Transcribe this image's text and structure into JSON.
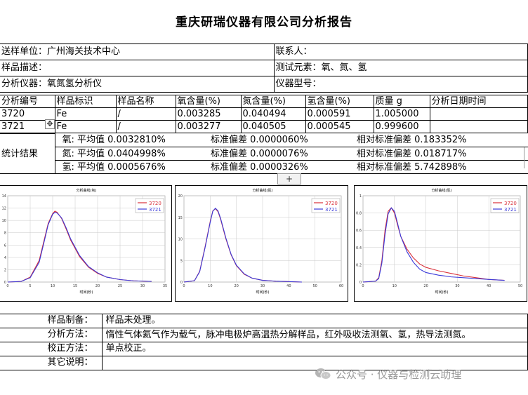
{
  "report": {
    "title": "重庆研瑞仪器有限公司分析报告"
  },
  "info": {
    "sender_label": "送样单位：",
    "sender_value": "广州海关技术中心",
    "contact_label": "联系人：",
    "sample_desc_label": "样品描述：",
    "elements_label": "测试元素：",
    "elements_value": "氧、氮、氢",
    "instrument_label": "分析仪器：",
    "instrument_value": "氧氮氢分析仪",
    "model_label": "仪器型号："
  },
  "measure": {
    "headers": [
      "分析编号",
      "样品标识",
      "样品名称",
      "氧含量(%)",
      "氮含量(%)",
      "氢含量(%)",
      "质量 g",
      "分析日期时间"
    ],
    "rows": [
      [
        "3720",
        "Fe",
        "/",
        "0.003285",
        "0.040494",
        "0.000591",
        "1.005000",
        ""
      ],
      [
        "3721",
        "Fe",
        "/",
        "0.003277",
        "0.040505",
        "0.000545",
        "0.999600",
        ""
      ]
    ]
  },
  "stats": {
    "label": "统计结果",
    "rows": [
      {
        "mean": "氧: 平均值 0.0032810%",
        "sd": "标准偏差 0.0000060%",
        "rsd": "相对标准偏差 0.183352%"
      },
      {
        "mean": "氮: 平均值 0.0404998%",
        "sd": "标准偏差 0.0000076%",
        "rsd": "相对标准偏差 0.018717%"
      },
      {
        "mean": "氢: 平均值 0.0005676%",
        "sd": "标准偏差 0.0000326%",
        "rsd": "相对标准偏差 5.742898%"
      }
    ]
  },
  "handles": {
    "move_glyph": "✥",
    "plus_glyph": "+"
  },
  "colors": {
    "series_3720": "#d9303a",
    "series_3721": "#3a3ad9",
    "plot_bg": "#ffffff",
    "grid": "#c8c8c8"
  },
  "chart_data": [
    {
      "type": "line",
      "title": "分析曲线(氧)",
      "xlabel": "时间(秒)",
      "ylabel": "",
      "xlim": [
        0,
        35
      ],
      "ylim": [
        0,
        14
      ],
      "xticks": [
        0,
        5,
        10,
        15,
        20,
        25,
        30,
        35
      ],
      "yticks": [
        0,
        2,
        4,
        6,
        8,
        10,
        12,
        14
      ],
      "grid": true,
      "legend": "top-right",
      "series": [
        {
          "name": "3720",
          "color": "#d9303a",
          "x": [
            0,
            3,
            5,
            7,
            8,
            9,
            10,
            10.5,
            11,
            12,
            13,
            14,
            16,
            18,
            20,
            22,
            25,
            28,
            32
          ],
          "y": [
            0,
            0.1,
            0.8,
            3.5,
            6.5,
            9.5,
            11.1,
            11.5,
            11.3,
            10.3,
            8.6,
            6.8,
            4.1,
            2.4,
            1.4,
            0.8,
            0.4,
            0.2,
            0.1
          ]
        },
        {
          "name": "3721",
          "color": "#3a3ad9",
          "x": [
            0,
            3,
            5,
            7,
            8,
            9,
            10,
            10.5,
            11,
            12,
            13,
            14,
            16,
            18,
            20,
            22,
            25,
            28,
            32
          ],
          "y": [
            0,
            0.1,
            0.7,
            3.2,
            6.2,
            9.3,
            11.0,
            11.3,
            11.2,
            10.4,
            8.8,
            7.0,
            4.3,
            2.5,
            1.5,
            0.8,
            0.4,
            0.2,
            0.1
          ]
        }
      ]
    },
    {
      "type": "line",
      "title": "分析曲线(氮)",
      "xlabel": "时间(秒)",
      "ylabel": "",
      "xlim": [
        0,
        60
      ],
      "ylim": [
        0,
        20
      ],
      "xticks": [
        0,
        10,
        20,
        30,
        40,
        50,
        60
      ],
      "yticks": [
        0,
        5,
        10,
        15,
        20
      ],
      "grid": true,
      "legend": "top-right",
      "series": [
        {
          "name": "3720",
          "color": "#d9303a",
          "x": [
            0,
            4,
            6,
            8,
            10,
            11,
            12,
            13,
            14,
            16,
            18,
            20,
            23,
            26,
            30,
            35,
            40,
            45
          ],
          "y": [
            0,
            0.3,
            2.5,
            8.0,
            14.0,
            16.5,
            17.0,
            16.3,
            14.5,
            10.0,
            6.3,
            3.8,
            1.8,
            0.9,
            0.4,
            0.2,
            0.1,
            0
          ]
        },
        {
          "name": "3721",
          "color": "#3a3ad9",
          "x": [
            0,
            4,
            6,
            8,
            10,
            11,
            12,
            13,
            14,
            16,
            18,
            20,
            23,
            26,
            30,
            35,
            40,
            45
          ],
          "y": [
            0,
            0.3,
            2.4,
            7.8,
            13.8,
            16.4,
            17.1,
            16.5,
            14.7,
            10.2,
            6.4,
            3.9,
            1.9,
            0.9,
            0.4,
            0.2,
            0.1,
            0
          ]
        }
      ]
    },
    {
      "type": "line",
      "title": "分析曲线(氢)",
      "xlabel": "时间(秒)",
      "ylabel": "",
      "xlim": [
        0,
        50
      ],
      "ylim": [
        0,
        1.0
      ],
      "xticks": [
        0,
        10,
        20,
        30,
        40,
        50
      ],
      "yticks": [
        0,
        0.2,
        0.4,
        0.6,
        0.8,
        1.0
      ],
      "grid": true,
      "legend": "top-right",
      "series": [
        {
          "name": "3720",
          "color": "#d9303a",
          "x": [
            0,
            4,
            5,
            6,
            7,
            8,
            9,
            10,
            11,
            12,
            14,
            16,
            18,
            20,
            24,
            28,
            32,
            36,
            40,
            45
          ],
          "y": [
            0,
            0.01,
            0.05,
            0.25,
            0.6,
            0.82,
            0.86,
            0.8,
            0.66,
            0.53,
            0.38,
            0.28,
            0.21,
            0.17,
            0.13,
            0.1,
            0.07,
            0.05,
            0.03,
            0.02
          ]
        },
        {
          "name": "3721",
          "color": "#3a3ad9",
          "x": [
            0,
            4,
            5,
            6,
            7,
            8,
            9,
            10,
            11,
            12,
            14,
            16,
            18,
            20,
            24,
            28,
            32,
            36,
            40,
            45
          ],
          "y": [
            0,
            0.01,
            0.04,
            0.22,
            0.55,
            0.79,
            0.86,
            0.82,
            0.68,
            0.53,
            0.35,
            0.23,
            0.15,
            0.11,
            0.08,
            0.06,
            0.05,
            0.04,
            0.03,
            0.02
          ]
        }
      ]
    }
  ],
  "bottom": {
    "rows": [
      {
        "label": "样品制备：",
        "value": "样品未处理。"
      },
      {
        "label": "分析方法：",
        "value": "惰性气体氦气作为载气，脉冲电极炉高温热分解样品，红外吸收法测氧、氢，热导法测氮。"
      },
      {
        "label": "校正方法：",
        "value": "单点校正。"
      },
      {
        "label": "其它说明：",
        "value": ""
      }
    ]
  },
  "watermark": {
    "text": "公众号 · 仪器与检测云助理",
    "icon": "wechat-icon"
  }
}
